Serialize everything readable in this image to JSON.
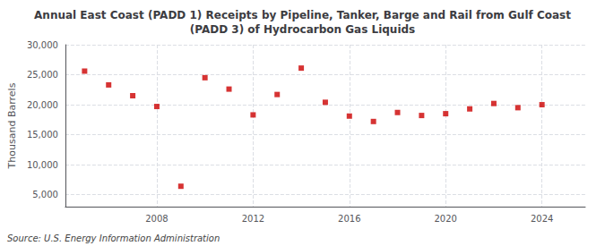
{
  "chart_data": {
    "type": "scatter",
    "title": "Annual East Coast (PADD 1) Receipts by Pipeline, Tanker, Barge and Rail from Gulf Coast\n(PADD 3) of Hydrocarbon Gas Liquids",
    "ylabel": "Thousand Barrels",
    "annotations": [
      "Source: U.S. Energy Information Administration"
    ],
    "x": [
      2005,
      2006,
      2007,
      2008,
      2009,
      2010,
      2011,
      2012,
      2013,
      2014,
      2015,
      2016,
      2017,
      2018,
      2019,
      2020,
      2021,
      2022,
      2023,
      2024
    ],
    "values": [
      25600,
      23300,
      21500,
      19700,
      6400,
      24500,
      22600,
      18300,
      21700,
      26100,
      20400,
      18100,
      17200,
      18700,
      18200,
      18500,
      19300,
      20200,
      19500,
      20000
    ],
    "color": "#cc0000",
    "marker": "square",
    "xlim": [
      2004.2,
      2025.8
    ],
    "xticks": [
      2008,
      2012,
      2016,
      2020,
      2024
    ],
    "ylim": [
      3000,
      30000
    ],
    "yticks": [
      {
        "value": 5000,
        "label": "5,000"
      },
      {
        "value": 10000,
        "label": "10,000"
      },
      {
        "value": 15000,
        "label": "15,000"
      },
      {
        "value": 20000,
        "label": "20,000"
      },
      {
        "value": 25000,
        "label": "25,000"
      },
      {
        "value": 30000,
        "label": "30,000"
      }
    ],
    "grid": true
  }
}
